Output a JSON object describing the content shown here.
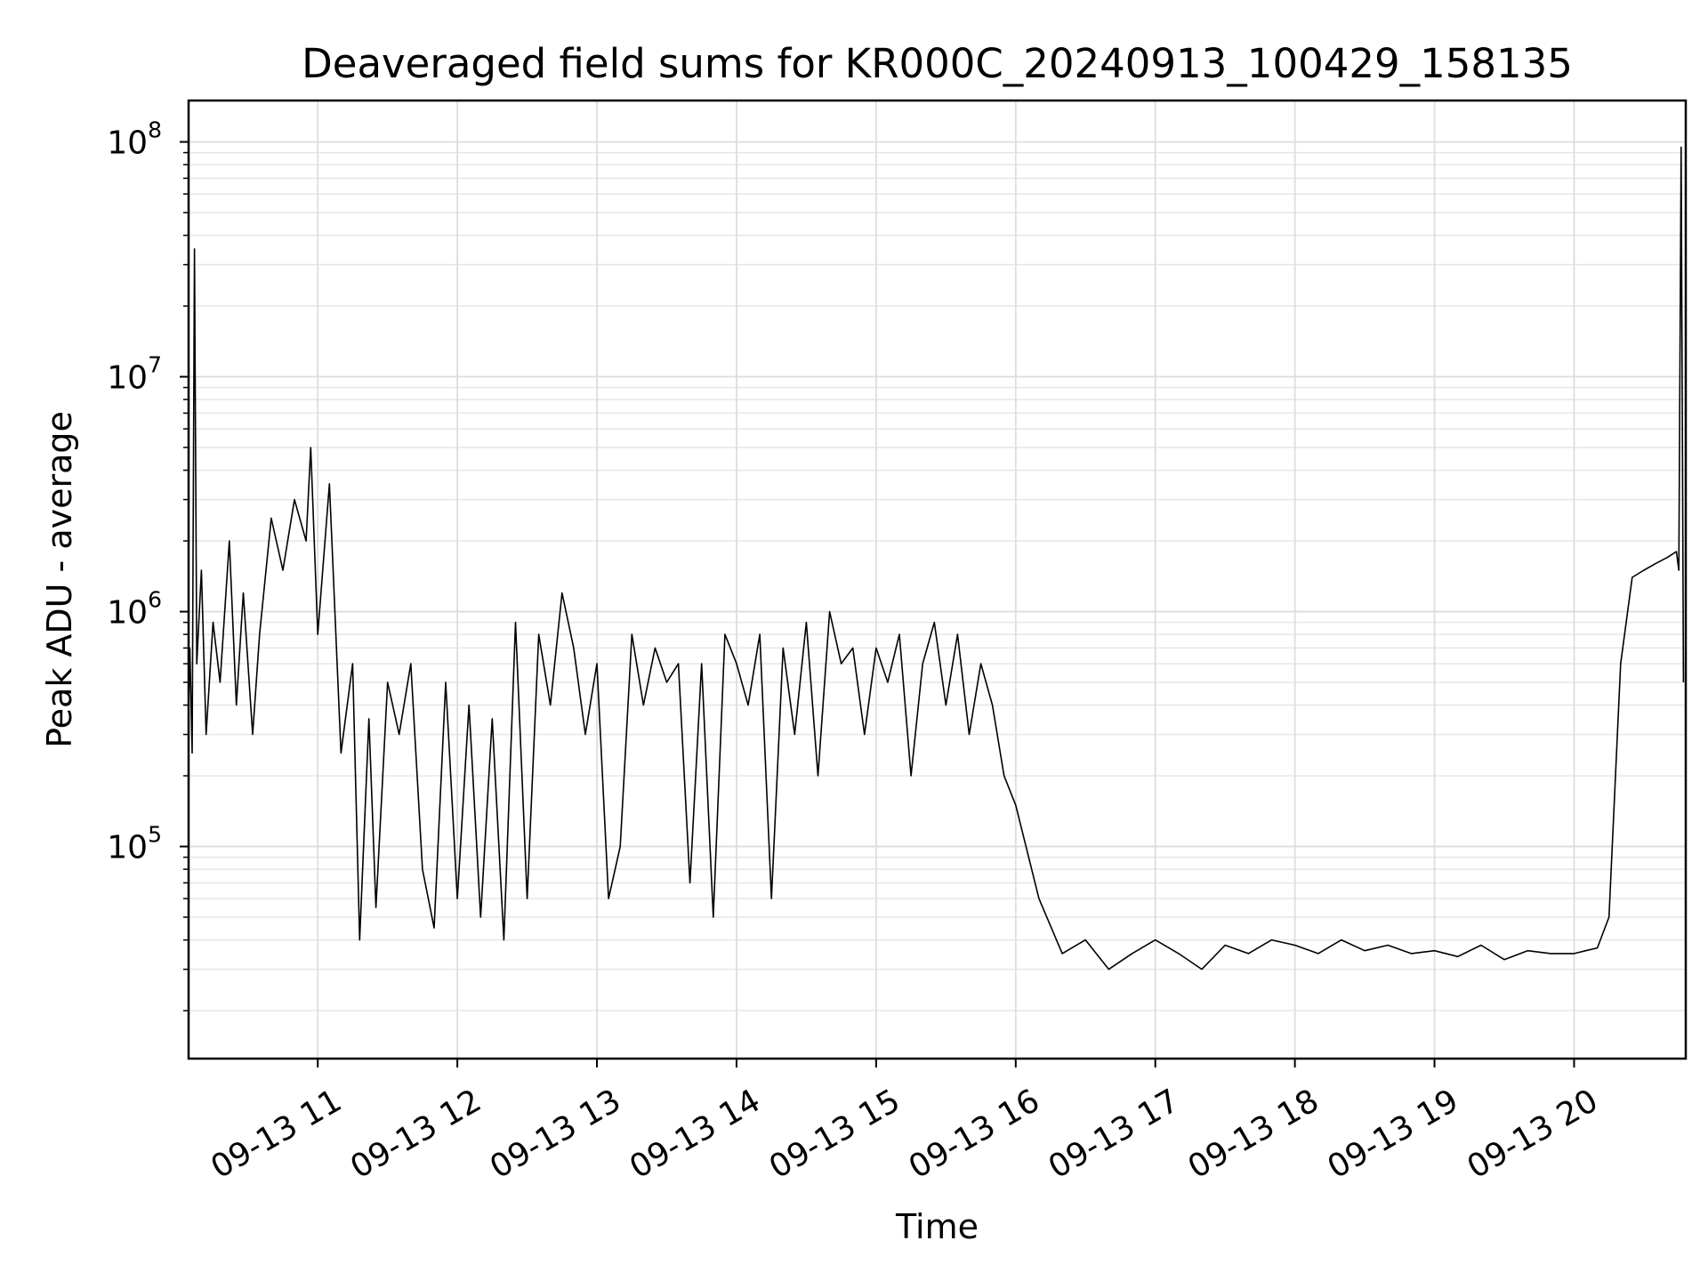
{
  "chart_data": {
    "type": "line",
    "title": "Deaveraged field sums for KR000C_20240913_100429_158135",
    "xlabel": "Time",
    "ylabel": "Peak ADU - average",
    "x_is_datetime": true,
    "xlim": [
      "2024-09-13T10:04:29",
      "2024-09-13T20:48:00"
    ],
    "ylim": [
      12500,
      150000000
    ],
    "y_scale": "log",
    "grid": true,
    "line_color": "#000000",
    "x_ticks": [
      {
        "value": "2024-09-13T11:00",
        "label": "09-13 11"
      },
      {
        "value": "2024-09-13T12:00",
        "label": "09-13 12"
      },
      {
        "value": "2024-09-13T13:00",
        "label": "09-13 13"
      },
      {
        "value": "2024-09-13T14:00",
        "label": "09-13 14"
      },
      {
        "value": "2024-09-13T15:00",
        "label": "09-13 15"
      },
      {
        "value": "2024-09-13T16:00",
        "label": "09-13 16"
      },
      {
        "value": "2024-09-13T17:00",
        "label": "09-13 17"
      },
      {
        "value": "2024-09-13T18:00",
        "label": "09-13 18"
      },
      {
        "value": "2024-09-13T19:00",
        "label": "09-13 19"
      },
      {
        "value": "2024-09-13T20:00",
        "label": "09-13 20"
      }
    ],
    "y_ticks": [
      {
        "value": 100000,
        "base": "10",
        "exp": "5"
      },
      {
        "value": 1000000,
        "base": "10",
        "exp": "6"
      },
      {
        "value": 10000000,
        "base": "10",
        "exp": "7"
      },
      {
        "value": 100000000,
        "base": "10",
        "exp": "8"
      }
    ],
    "series": [
      {
        "x": [
          "2024-09-13T10:04:29",
          "2024-09-13T10:05:00",
          "2024-09-13T10:06:00",
          "2024-09-13T10:07:00",
          "2024-09-13T10:08:00",
          "2024-09-13T10:10:00",
          "2024-09-13T10:12:00",
          "2024-09-13T10:15:00",
          "2024-09-13T10:18:00",
          "2024-09-13T10:22:00",
          "2024-09-13T10:25:00",
          "2024-09-13T10:28:00",
          "2024-09-13T10:32:00",
          "2024-09-13T10:35:00",
          "2024-09-13T10:40:00",
          "2024-09-13T10:45:00",
          "2024-09-13T10:50:00",
          "2024-09-13T10:55:00",
          "2024-09-13T10:57:00",
          "2024-09-13T11:00:00",
          "2024-09-13T11:05:00",
          "2024-09-13T11:10:00",
          "2024-09-13T11:15:00",
          "2024-09-13T11:18:00",
          "2024-09-13T11:22:00",
          "2024-09-13T11:25:00",
          "2024-09-13T11:30:00",
          "2024-09-13T11:35:00",
          "2024-09-13T11:40:00",
          "2024-09-13T11:45:00",
          "2024-09-13T11:50:00",
          "2024-09-13T11:55:00",
          "2024-09-13T12:00:00",
          "2024-09-13T12:05:00",
          "2024-09-13T12:10:00",
          "2024-09-13T12:15:00",
          "2024-09-13T12:20:00",
          "2024-09-13T12:25:00",
          "2024-09-13T12:30:00",
          "2024-09-13T12:35:00",
          "2024-09-13T12:40:00",
          "2024-09-13T12:45:00",
          "2024-09-13T12:50:00",
          "2024-09-13T12:55:00",
          "2024-09-13T13:00:00",
          "2024-09-13T13:05:00",
          "2024-09-13T13:10:00",
          "2024-09-13T13:15:00",
          "2024-09-13T13:20:00",
          "2024-09-13T13:25:00",
          "2024-09-13T13:30:00",
          "2024-09-13T13:35:00",
          "2024-09-13T13:40:00",
          "2024-09-13T13:45:00",
          "2024-09-13T13:50:00",
          "2024-09-13T13:55:00",
          "2024-09-13T14:00:00",
          "2024-09-13T14:05:00",
          "2024-09-13T14:10:00",
          "2024-09-13T14:15:00",
          "2024-09-13T14:20:00",
          "2024-09-13T14:25:00",
          "2024-09-13T14:30:00",
          "2024-09-13T14:35:00",
          "2024-09-13T14:40:00",
          "2024-09-13T14:45:00",
          "2024-09-13T14:50:00",
          "2024-09-13T14:55:00",
          "2024-09-13T15:00:00",
          "2024-09-13T15:05:00",
          "2024-09-13T15:10:00",
          "2024-09-13T15:15:00",
          "2024-09-13T15:20:00",
          "2024-09-13T15:25:00",
          "2024-09-13T15:30:00",
          "2024-09-13T15:35:00",
          "2024-09-13T15:40:00",
          "2024-09-13T15:45:00",
          "2024-09-13T15:50:00",
          "2024-09-13T15:55:00",
          "2024-09-13T16:00:00",
          "2024-09-13T16:10:00",
          "2024-09-13T16:20:00",
          "2024-09-13T16:30:00",
          "2024-09-13T16:40:00",
          "2024-09-13T16:50:00",
          "2024-09-13T17:00:00",
          "2024-09-13T17:10:00",
          "2024-09-13T17:20:00",
          "2024-09-13T17:30:00",
          "2024-09-13T17:40:00",
          "2024-09-13T17:50:00",
          "2024-09-13T18:00:00",
          "2024-09-13T18:10:00",
          "2024-09-13T18:20:00",
          "2024-09-13T18:30:00",
          "2024-09-13T18:40:00",
          "2024-09-13T18:50:00",
          "2024-09-13T19:00:00",
          "2024-09-13T19:10:00",
          "2024-09-13T19:20:00",
          "2024-09-13T19:30:00",
          "2024-09-13T19:40:00",
          "2024-09-13T19:50:00",
          "2024-09-13T20:00:00",
          "2024-09-13T20:05:00",
          "2024-09-13T20:10:00",
          "2024-09-13T20:15:00",
          "2024-09-13T20:20:00",
          "2024-09-13T20:25:00",
          "2024-09-13T20:30:00",
          "2024-09-13T20:35:00",
          "2024-09-13T20:40:00",
          "2024-09-13T20:44:00",
          "2024-09-13T20:45:00",
          "2024-09-13T20:46:00",
          "2024-09-13T20:47:00"
        ],
        "y": [
          400000,
          700000,
          250000,
          35000000,
          600000,
          1500000,
          300000,
          900000,
          500000,
          2000000,
          400000,
          1200000,
          300000,
          800000,
          2500000,
          1500000,
          3000000,
          2000000,
          5000000,
          800000,
          3500000,
          250000,
          600000,
          40000,
          350000,
          55000,
          500000,
          300000,
          600000,
          80000,
          45000,
          500000,
          60000,
          400000,
          50000,
          350000,
          40000,
          900000,
          60000,
          800000,
          400000,
          1200000,
          700000,
          300000,
          600000,
          60000,
          100000,
          800000,
          400000,
          700000,
          500000,
          600000,
          70000,
          600000,
          50000,
          800000,
          600000,
          400000,
          800000,
          60000,
          700000,
          300000,
          900000,
          200000,
          1000000,
          600000,
          700000,
          300000,
          700000,
          500000,
          800000,
          200000,
          600000,
          900000,
          400000,
          800000,
          300000,
          600000,
          400000,
          200000,
          150000,
          60000,
          35000,
          40000,
          30000,
          35000,
          40000,
          35000,
          30000,
          38000,
          35000,
          40000,
          38000,
          35000,
          40000,
          36000,
          38000,
          35000,
          36000,
          34000,
          38000,
          33000,
          36000,
          35000,
          35000,
          36000,
          37000,
          50000,
          600000,
          1400000,
          1500000,
          1600000,
          1700000,
          1800000,
          1500000,
          95000000,
          500000
        ]
      }
    ]
  }
}
